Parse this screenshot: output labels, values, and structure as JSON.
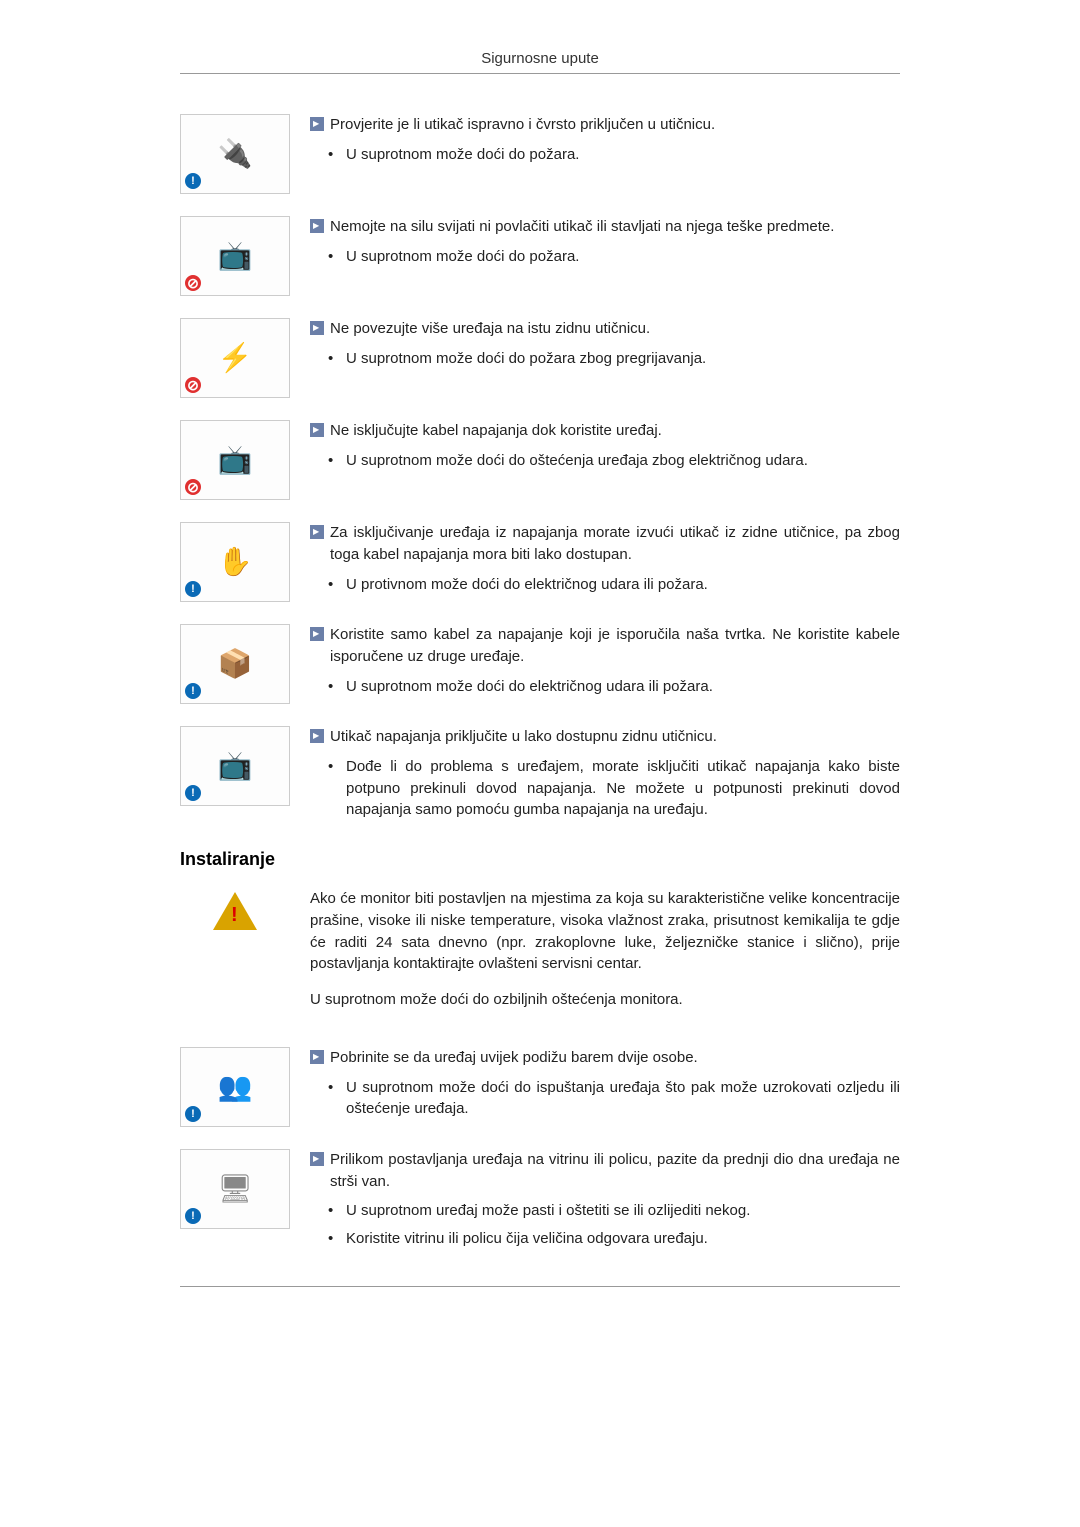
{
  "header": "Sigurnosne upute",
  "items": [
    {
      "badge": "info",
      "doodle": "🔌",
      "lead": "Provjerite je li utikač ispravno i čvrsto priključen u utičnicu.",
      "bullets": [
        "U suprotnom može doći do požara."
      ]
    },
    {
      "badge": "no",
      "doodle": "📺",
      "lead": "Nemojte na silu svijati ni povlačiti utikač ili stavljati na njega teške predmete.",
      "bullets": [
        "U suprotnom može doći do požara."
      ]
    },
    {
      "badge": "no",
      "doodle": "⚡",
      "lead": "Ne povezujte više uređaja na istu zidnu utičnicu.",
      "bullets": [
        "U suprotnom može doći do požara zbog pregrijavanja."
      ]
    },
    {
      "badge": "no",
      "doodle": "📺",
      "lead": "Ne isključujte kabel napajanja dok koristite uređaj.",
      "bullets": [
        "U suprotnom može doći do oštećenja uređaja zbog električnog udara."
      ]
    },
    {
      "badge": "info",
      "doodle": "✋",
      "lead": "Za isključivanje uređaja iz napajanja morate izvući utikač iz zidne utičnice, pa zbog toga kabel napajanja mora biti lako dostupan.",
      "bullets": [
        "U protivnom može doći do električnog udara ili požara."
      ]
    },
    {
      "badge": "info",
      "doodle": "📦",
      "lead": "Koristite samo kabel za napajanje koji je isporučila naša tvrtka. Ne koristite kabele isporučene uz druge uređaje.",
      "bullets": [
        "U suprotnom može doći do električnog udara ili požara."
      ]
    },
    {
      "badge": "info",
      "doodle": "📺",
      "lead": "Utikač napajanja priključite u lako dostupnu zidnu utičnicu.",
      "bullets": [
        "Dođe li do problema s uređajem, morate isključiti utikač napajanja kako biste potpuno prekinuli dovod napajanja. Ne možete u potpunosti prekinuti dovod napajanja samo pomoću gumba napajanja na uređaju."
      ]
    }
  ],
  "section2_title": "Instaliranje",
  "warning": {
    "p1": "Ako će monitor biti postavljen na mjestima za koja su karakteristične velike koncentracije prašine, visoke ili niske temperature, visoka vlažnost zraka, prisutnost kemikalija te gdje će raditi 24 sata dnevno (npr. zrakoplovne luke, željezničke stanice i slično), prije postavljanja kontaktirajte ovlašteni servisni centar.",
    "p2": "U suprotnom može doći do ozbiljnih oštećenja monitora."
  },
  "items2": [
    {
      "badge": "info",
      "doodle": "👥",
      "lead": "Pobrinite se da uređaj uvijek podižu barem dvije osobe.",
      "bullets": [
        "U suprotnom može doći do ispuštanja uređaja što pak može uzrokovati ozljedu ili oštećenje uređaja."
      ]
    },
    {
      "badge": "info",
      "doodle": "🖥",
      "lead": "Prilikom postavljanja uređaja na vitrinu ili policu, pazite da prednji dio dna uređaja ne strši van.",
      "bullets": [
        "U suprotnom uređaj može pasti i oštetiti se ili ozlijediti nekog.",
        "Koristite vitrinu ili policu čija veličina odgovara uređaju."
      ]
    }
  ],
  "colors": {
    "arrow_bg": "#6b7fa8",
    "badge_info": "#0a6ab6",
    "badge_no": "#e03030",
    "rule": "#999999",
    "text": "#222222"
  }
}
